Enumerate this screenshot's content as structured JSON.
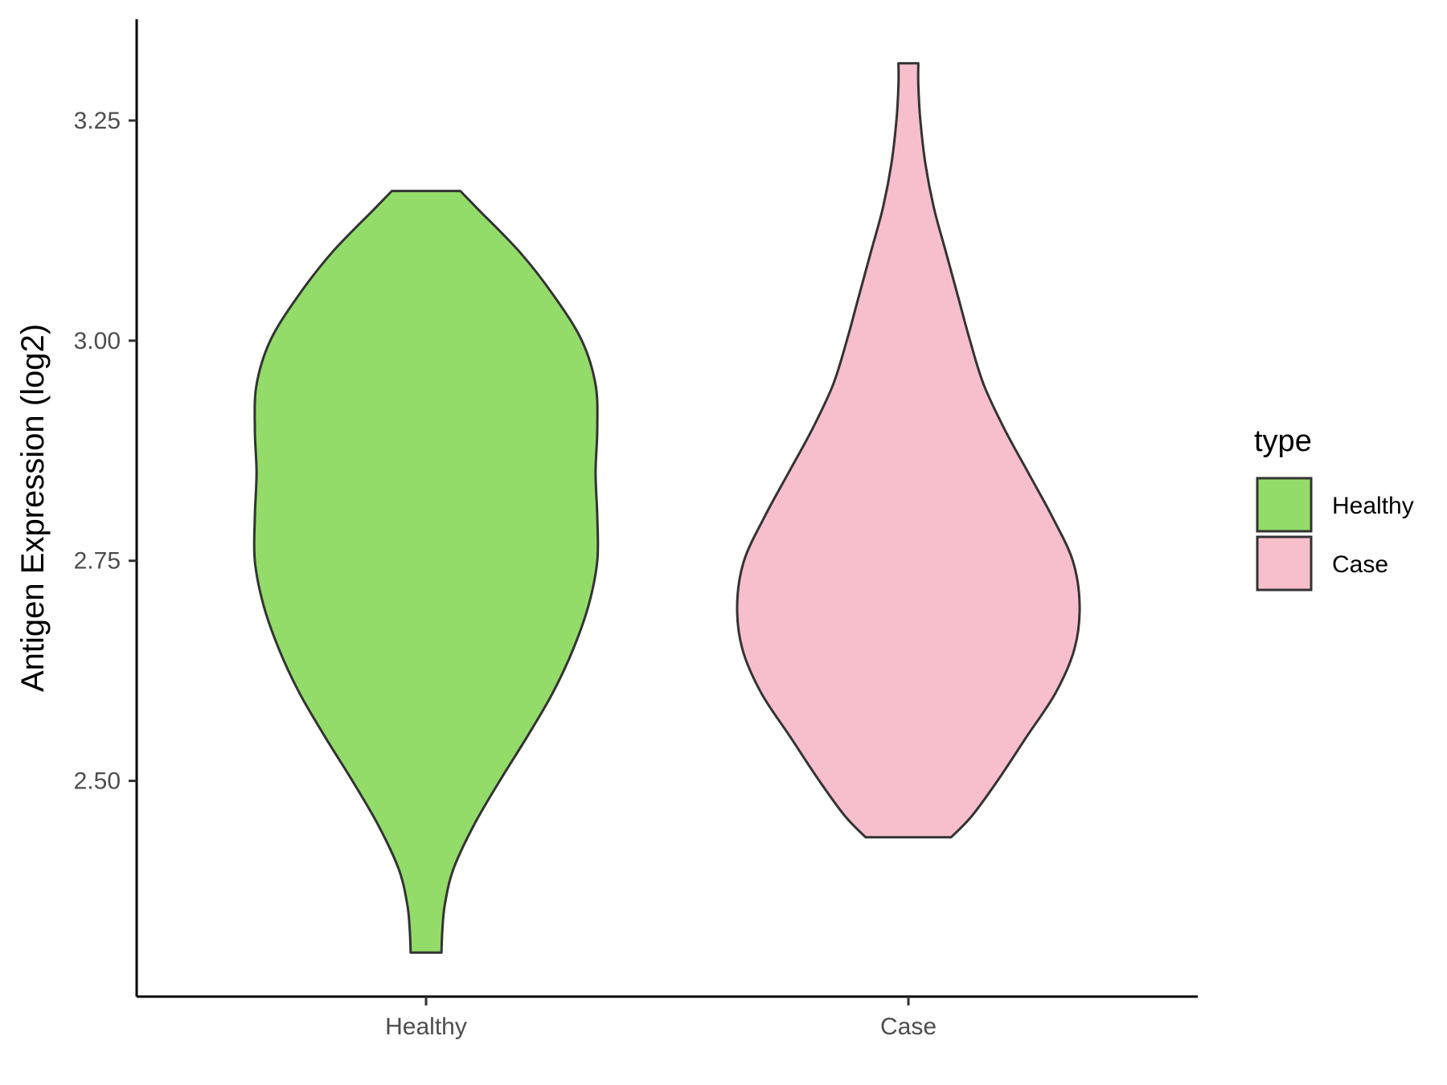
{
  "chart_data": {
    "type": "violin",
    "title": "",
    "xlabel": "",
    "ylabel": "Antigen Expression (log2)",
    "ylim": [
      2.255,
      3.365
    ],
    "yticks": [
      2.5,
      2.75,
      3.0,
      3.25
    ],
    "ytick_labels": [
      "2.50",
      "2.75",
      "3.00",
      "3.25"
    ],
    "categories": [
      "Healthy",
      "Case"
    ],
    "grid": false,
    "legend": {
      "title": "type",
      "position": "right",
      "entries": [
        "Healthy",
        "Case"
      ]
    },
    "series": [
      {
        "name": "Healthy",
        "color": "#93DC6A",
        "min": 2.305,
        "max": 3.17,
        "density": [
          [
            2.305,
            0.09
          ],
          [
            2.33,
            0.095
          ],
          [
            2.36,
            0.11
          ],
          [
            2.4,
            0.16
          ],
          [
            2.45,
            0.28
          ],
          [
            2.5,
            0.43
          ],
          [
            2.55,
            0.59
          ],
          [
            2.6,
            0.74
          ],
          [
            2.65,
            0.86
          ],
          [
            2.7,
            0.95
          ],
          [
            2.75,
            1.0
          ],
          [
            2.8,
            1.0
          ],
          [
            2.85,
            0.99
          ],
          [
            2.9,
            1.0
          ],
          [
            2.95,
            0.99
          ],
          [
            3.0,
            0.91
          ],
          [
            3.05,
            0.75
          ],
          [
            3.1,
            0.55
          ],
          [
            3.15,
            0.3
          ],
          [
            3.17,
            0.2
          ]
        ]
      },
      {
        "name": "Case",
        "color": "#F7BFCB",
        "min": 2.436,
        "max": 3.315,
        "density": [
          [
            2.436,
            0.25
          ],
          [
            2.46,
            0.37
          ],
          [
            2.5,
            0.52
          ],
          [
            2.55,
            0.69
          ],
          [
            2.6,
            0.86
          ],
          [
            2.65,
            0.97
          ],
          [
            2.7,
            1.0
          ],
          [
            2.75,
            0.96
          ],
          [
            2.8,
            0.84
          ],
          [
            2.85,
            0.7
          ],
          [
            2.9,
            0.56
          ],
          [
            2.95,
            0.44
          ],
          [
            3.0,
            0.36
          ],
          [
            3.05,
            0.29
          ],
          [
            3.1,
            0.22
          ],
          [
            3.15,
            0.15
          ],
          [
            3.2,
            0.1
          ],
          [
            3.25,
            0.07
          ],
          [
            3.29,
            0.058
          ],
          [
            3.315,
            0.058
          ]
        ]
      }
    ]
  }
}
